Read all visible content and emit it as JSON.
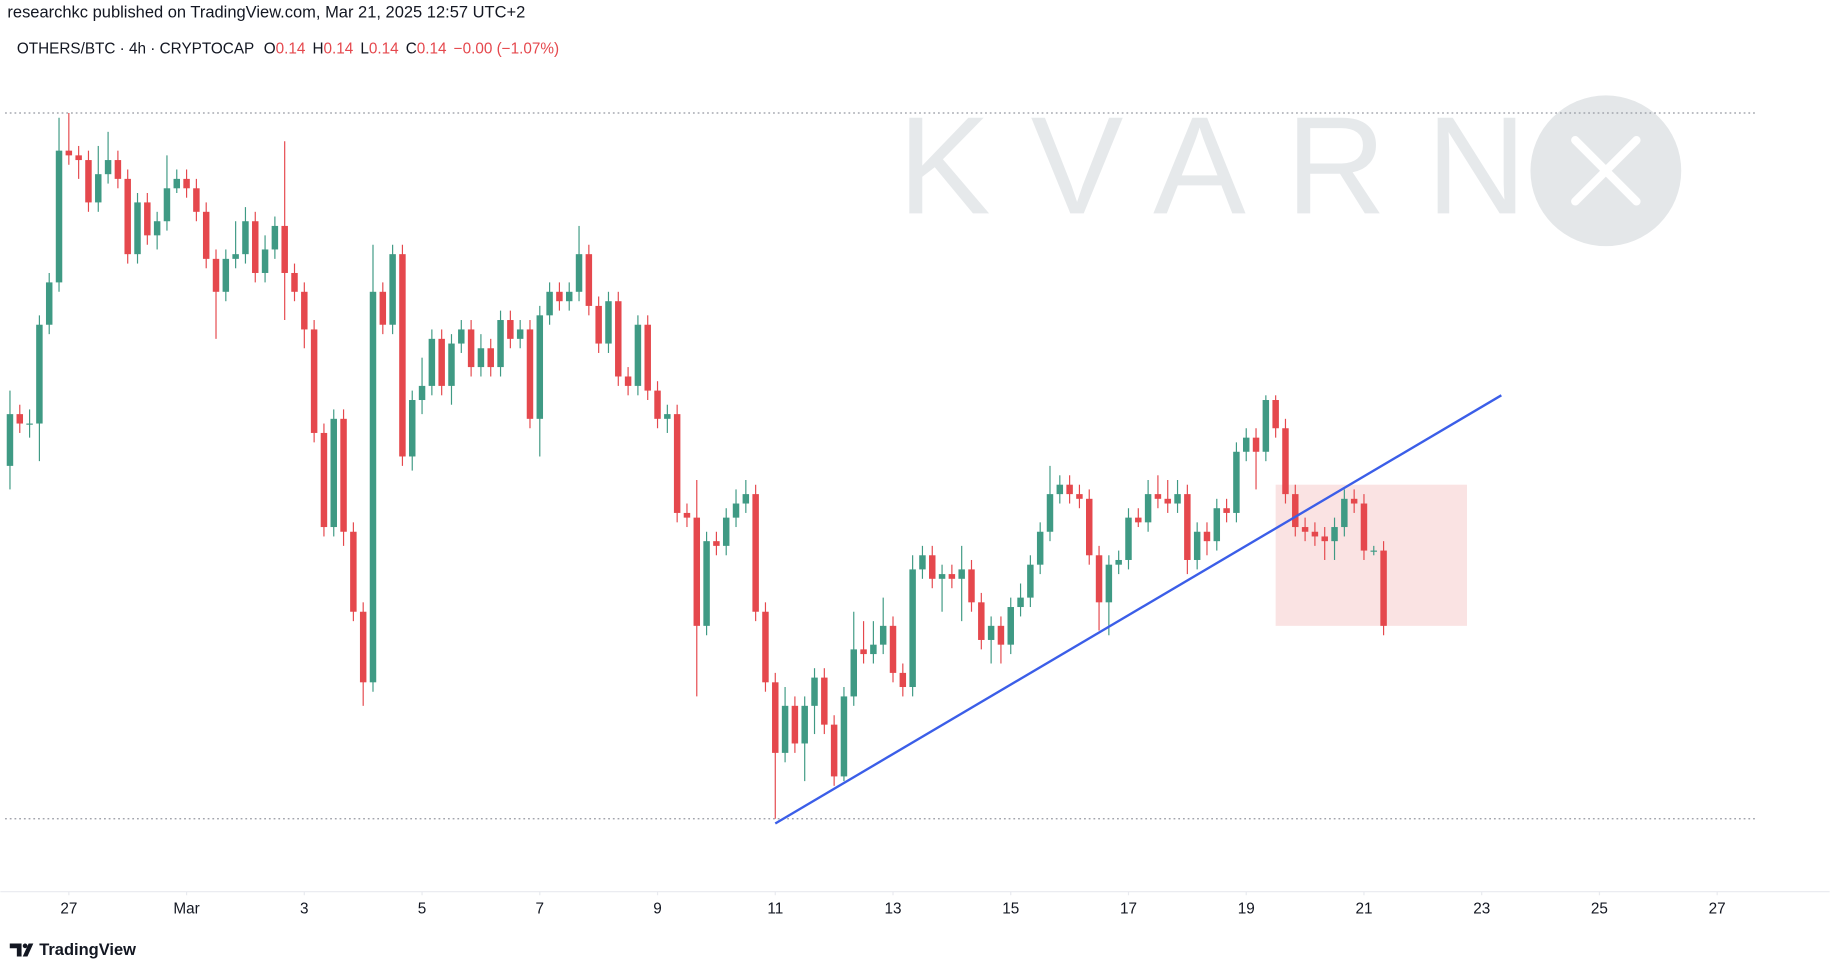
{
  "header": "researchkc published on TradingView.com, Mar 21, 2025 12:57 UTC+2",
  "footer": "TradingView",
  "watermark": "KVARN",
  "chart_data": {
    "type": "candlestick",
    "symbol": "OTHERS/BTC · 4h · CRYPTOCAP",
    "ohlc": [
      {
        "label": "O",
        "value": 0.14
      },
      {
        "label": "H",
        "value": 0.14
      },
      {
        "label": "L",
        "value": 0.14
      },
      {
        "label": "C",
        "value": 0.14
      }
    ],
    "change": "−0.00 (−1.07%)",
    "up_color": "#3f9a84",
    "down_color": "#e5484d",
    "xlim": [
      -0.5,
      178.5
    ],
    "ylim": [
      0.1325,
      0.15
    ],
    "xticks": [
      {
        "value": 6,
        "label": "27"
      },
      {
        "value": 18,
        "label": "Mar"
      },
      {
        "value": 30,
        "label": "3"
      },
      {
        "value": 42,
        "label": "5"
      },
      {
        "value": 54,
        "label": "7"
      },
      {
        "value": 66,
        "label": "9"
      },
      {
        "value": 78,
        "label": "11"
      },
      {
        "value": 90,
        "label": "13"
      },
      {
        "value": 102,
        "label": "15"
      },
      {
        "value": 114,
        "label": "17"
      },
      {
        "value": 126,
        "label": "19"
      },
      {
        "value": 138,
        "label": "21"
      },
      {
        "value": 150,
        "label": "23"
      },
      {
        "value": 162,
        "label": "25"
      },
      {
        "value": 174,
        "label": "27"
      }
    ],
    "hlines": [
      0.149,
      0.134
    ],
    "trendline": {
      "x": [
        78,
        152
      ],
      "y": [
        0.1339,
        0.143
      ],
      "color": "#3b5ee8"
    },
    "zone": {
      "x": [
        129,
        148.5
      ],
      "y": [
        0.1381,
        0.1411
      ],
      "color": "#f9dede"
    },
    "candles": [
      [
        0.1415,
        0.1431,
        0.141,
        0.1426
      ],
      [
        0.1426,
        0.1428,
        0.1422,
        0.1424
      ],
      [
        0.1424,
        0.1427,
        0.1421,
        0.1424
      ],
      [
        0.1424,
        0.1447,
        0.1416,
        0.1445
      ],
      [
        0.1445,
        0.1456,
        0.1443,
        0.1454
      ],
      [
        0.1454,
        0.1489,
        0.1452,
        0.1482
      ],
      [
        0.1482,
        0.149,
        0.1479,
        0.1481
      ],
      [
        0.1481,
        0.1483,
        0.1476,
        0.148
      ],
      [
        0.148,
        0.1482,
        0.1469,
        0.1471
      ],
      [
        0.1471,
        0.1483,
        0.1469,
        0.1477
      ],
      [
        0.1477,
        0.1486,
        0.1475,
        0.148
      ],
      [
        0.148,
        0.1482,
        0.1474,
        0.1476
      ],
      [
        0.1476,
        0.1478,
        0.1458,
        0.146
      ],
      [
        0.146,
        0.1473,
        0.1458,
        0.1471
      ],
      [
        0.1471,
        0.1473,
        0.1462,
        0.1464
      ],
      [
        0.1464,
        0.1469,
        0.1461,
        0.1467
      ],
      [
        0.1467,
        0.1481,
        0.1465,
        0.1474
      ],
      [
        0.1474,
        0.1478,
        0.1473,
        0.1476
      ],
      [
        0.1476,
        0.1478,
        0.1472,
        0.1474
      ],
      [
        0.1474,
        0.1476,
        0.1467,
        0.1469
      ],
      [
        0.1469,
        0.1471,
        0.1457,
        0.1459
      ],
      [
        0.1459,
        0.1461,
        0.1442,
        0.1452
      ],
      [
        0.1452,
        0.1461,
        0.145,
        0.1459
      ],
      [
        0.1459,
        0.1467,
        0.1457,
        0.146
      ],
      [
        0.146,
        0.147,
        0.1458,
        0.1467
      ],
      [
        0.1467,
        0.1469,
        0.1454,
        0.1456
      ],
      [
        0.1456,
        0.1464,
        0.1454,
        0.1461
      ],
      [
        0.1461,
        0.1468,
        0.1459,
        0.1466
      ],
      [
        0.1466,
        0.1484,
        0.1446,
        0.1456
      ],
      [
        0.1456,
        0.1458,
        0.145,
        0.1452
      ],
      [
        0.1452,
        0.1454,
        0.144,
        0.1444
      ],
      [
        0.1444,
        0.1446,
        0.142,
        0.1422
      ],
      [
        0.1422,
        0.1424,
        0.14,
        0.1402
      ],
      [
        0.1402,
        0.1427,
        0.14,
        0.1425
      ],
      [
        0.1425,
        0.1427,
        0.1398,
        0.1401
      ],
      [
        0.1401,
        0.1403,
        0.1382,
        0.1384
      ],
      [
        0.1384,
        0.1386,
        0.1364,
        0.1369
      ],
      [
        0.1369,
        0.1462,
        0.1367,
        0.1452
      ],
      [
        0.1452,
        0.1454,
        0.1443,
        0.1445
      ],
      [
        0.1445,
        0.1462,
        0.1443,
        0.146
      ],
      [
        0.146,
        0.1462,
        0.1415,
        0.1417
      ],
      [
        0.1417,
        0.1431,
        0.1414,
        0.1429
      ],
      [
        0.1429,
        0.1438,
        0.1426,
        0.1432
      ],
      [
        0.1432,
        0.1444,
        0.143,
        0.1442
      ],
      [
        0.1442,
        0.1444,
        0.143,
        0.1432
      ],
      [
        0.1432,
        0.1443,
        0.1428,
        0.1441
      ],
      [
        0.1441,
        0.1446,
        0.1439,
        0.1444
      ],
      [
        0.1444,
        0.1446,
        0.1434,
        0.1436
      ],
      [
        0.1436,
        0.1443,
        0.1434,
        0.144
      ],
      [
        0.144,
        0.1442,
        0.1434,
        0.1436
      ],
      [
        0.1436,
        0.1448,
        0.1434,
        0.1446
      ],
      [
        0.1446,
        0.1448,
        0.144,
        0.1442
      ],
      [
        0.1442,
        0.1446,
        0.144,
        0.1444
      ],
      [
        0.1444,
        0.1446,
        0.1423,
        0.1425
      ],
      [
        0.1425,
        0.1449,
        0.1417,
        0.1447
      ],
      [
        0.1447,
        0.1454,
        0.1445,
        0.1452
      ],
      [
        0.1452,
        0.1454,
        0.1448,
        0.145
      ],
      [
        0.145,
        0.1454,
        0.1448,
        0.1452
      ],
      [
        0.1452,
        0.1466,
        0.145,
        0.146
      ],
      [
        0.146,
        0.1462,
        0.1447,
        0.1449
      ],
      [
        0.1449,
        0.1451,
        0.1439,
        0.1441
      ],
      [
        0.1441,
        0.1452,
        0.1439,
        0.145
      ],
      [
        0.145,
        0.1452,
        0.1432,
        0.1434
      ],
      [
        0.1434,
        0.1436,
        0.143,
        0.1432
      ],
      [
        0.1432,
        0.1447,
        0.143,
        0.1445
      ],
      [
        0.1445,
        0.1447,
        0.1429,
        0.1431
      ],
      [
        0.1431,
        0.1433,
        0.1423,
        0.1425
      ],
      [
        0.1425,
        0.1428,
        0.1422,
        0.1426
      ],
      [
        0.1426,
        0.1428,
        0.1403,
        0.1405
      ],
      [
        0.1405,
        0.1407,
        0.1402,
        0.1404
      ],
      [
        0.1404,
        0.1412,
        0.1366,
        0.1381
      ],
      [
        0.1381,
        0.1401,
        0.1379,
        0.1399
      ],
      [
        0.1399,
        0.1401,
        0.1396,
        0.1398
      ],
      [
        0.1398,
        0.1406,
        0.1396,
        0.1404
      ],
      [
        0.1404,
        0.141,
        0.1402,
        0.1407
      ],
      [
        0.1407,
        0.1412,
        0.1405,
        0.1409
      ],
      [
        0.1409,
        0.1411,
        0.1382,
        0.1384
      ],
      [
        0.1384,
        0.1386,
        0.1367,
        0.1369
      ],
      [
        0.1369,
        0.1371,
        0.134,
        0.1354
      ],
      [
        0.1354,
        0.1368,
        0.1352,
        0.1364
      ],
      [
        0.1364,
        0.1366,
        0.1354,
        0.1356
      ],
      [
        0.1356,
        0.1366,
        0.1348,
        0.1364
      ],
      [
        0.1364,
        0.1372,
        0.1358,
        0.137
      ],
      [
        0.137,
        0.1372,
        0.1358,
        0.136
      ],
      [
        0.136,
        0.1362,
        0.1347,
        0.1349
      ],
      [
        0.1349,
        0.1368,
        0.1348,
        0.1366
      ],
      [
        0.1366,
        0.1384,
        0.1364,
        0.1376
      ],
      [
        0.1376,
        0.1382,
        0.1373,
        0.1375
      ],
      [
        0.1375,
        0.1382,
        0.1373,
        0.1377
      ],
      [
        0.1377,
        0.1387,
        0.1375,
        0.1381
      ],
      [
        0.1381,
        0.1383,
        0.1369,
        0.1371
      ],
      [
        0.1371,
        0.1373,
        0.1366,
        0.1368
      ],
      [
        0.1368,
        0.1396,
        0.1366,
        0.1393
      ],
      [
        0.1393,
        0.1398,
        0.1391,
        0.1396
      ],
      [
        0.1396,
        0.1398,
        0.1389,
        0.1391
      ],
      [
        0.1391,
        0.1394,
        0.1384,
        0.1392
      ],
      [
        0.1392,
        0.1394,
        0.1389,
        0.1391
      ],
      [
        0.1391,
        0.1398,
        0.1382,
        0.1393
      ],
      [
        0.1393,
        0.1395,
        0.1384,
        0.1386
      ],
      [
        0.1386,
        0.1388,
        0.1376,
        0.1378
      ],
      [
        0.1378,
        0.1383,
        0.1373,
        0.1381
      ],
      [
        0.1381,
        0.1383,
        0.1373,
        0.1377
      ],
      [
        0.1377,
        0.1387,
        0.1375,
        0.1385
      ],
      [
        0.1385,
        0.139,
        0.1383,
        0.1387
      ],
      [
        0.1387,
        0.1396,
        0.1385,
        0.1394
      ],
      [
        0.1394,
        0.1403,
        0.1392,
        0.1401
      ],
      [
        0.1401,
        0.1415,
        0.1399,
        0.1409
      ],
      [
        0.1409,
        0.1413,
        0.1407,
        0.1411
      ],
      [
        0.1411,
        0.1413,
        0.1407,
        0.1409
      ],
      [
        0.1409,
        0.1411,
        0.1406,
        0.1408
      ],
      [
        0.1408,
        0.141,
        0.1394,
        0.1396
      ],
      [
        0.1396,
        0.1398,
        0.138,
        0.1386
      ],
      [
        0.1386,
        0.1396,
        0.1379,
        0.1394
      ],
      [
        0.1394,
        0.1397,
        0.1392,
        0.1395
      ],
      [
        0.1395,
        0.1406,
        0.1393,
        0.1404
      ],
      [
        0.1404,
        0.1406,
        0.1402,
        0.1403
      ],
      [
        0.1403,
        0.1412,
        0.1401,
        0.1409
      ],
      [
        0.1409,
        0.1413,
        0.1406,
        0.1408
      ],
      [
        0.1408,
        0.1412,
        0.1405,
        0.1407
      ],
      [
        0.1407,
        0.1412,
        0.1405,
        0.1409
      ],
      [
        0.1409,
        0.1411,
        0.1392,
        0.1395
      ],
      [
        0.1395,
        0.1403,
        0.1393,
        0.1401
      ],
      [
        0.1401,
        0.1403,
        0.1396,
        0.1399
      ],
      [
        0.1399,
        0.1408,
        0.1397,
        0.1406
      ],
      [
        0.1406,
        0.1408,
        0.1403,
        0.1405
      ],
      [
        0.1405,
        0.142,
        0.1403,
        0.1418
      ],
      [
        0.1418,
        0.1423,
        0.1416,
        0.1421
      ],
      [
        0.1421,
        0.1423,
        0.141,
        0.1418
      ],
      [
        0.1418,
        0.143,
        0.1416,
        0.1429
      ],
      [
        0.1429,
        0.143,
        0.1421,
        0.1423
      ],
      [
        0.1423,
        0.1425,
        0.1407,
        0.1409
      ],
      [
        0.1409,
        0.1411,
        0.14,
        0.1402
      ],
      [
        0.1402,
        0.1404,
        0.1399,
        0.1401
      ],
      [
        0.1401,
        0.1403,
        0.1398,
        0.14
      ],
      [
        0.14,
        0.1402,
        0.1395,
        0.1399
      ],
      [
        0.1399,
        0.1404,
        0.1395,
        0.1402
      ],
      [
        0.1402,
        0.141,
        0.14,
        0.1408
      ],
      [
        0.1408,
        0.141,
        0.1405,
        0.1407
      ],
      [
        0.1407,
        0.1409,
        0.1395,
        0.1397
      ],
      [
        0.1397,
        0.1398,
        0.1396,
        0.1397
      ],
      [
        0.1397,
        0.1399,
        0.1379,
        0.1381
      ]
    ]
  }
}
